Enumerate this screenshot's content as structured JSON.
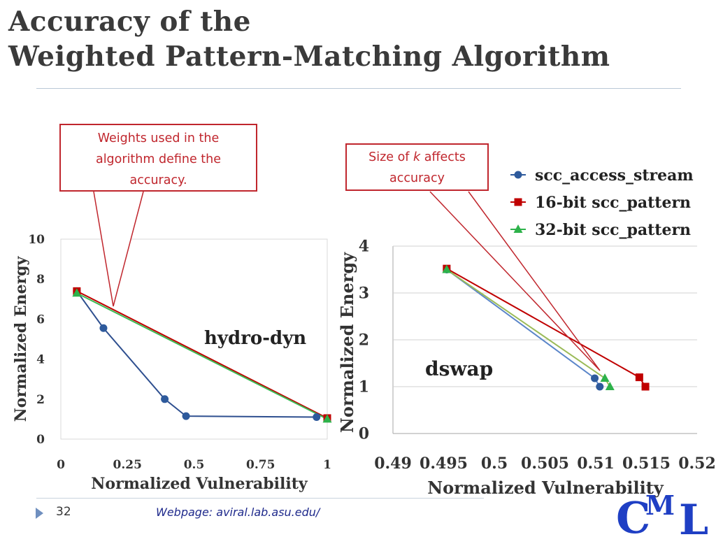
{
  "slide": {
    "title_line1": "Accuracy of the",
    "title_line2": "Weighted Pattern-Matching Algorithm",
    "callout_weights": [
      "Weights used in the",
      "algorithm define the",
      "accuracy."
    ],
    "callout_k_prefix": "Size of ",
    "callout_k_var": "k",
    "callout_k_suffix": " affects",
    "callout_k_line2": "accuracy",
    "slide_number": "32",
    "webpage": "Webpage: aviral.lab.asu.edu/",
    "logo_text": "CML"
  },
  "legend": [
    {
      "label": "scc_access_stream",
      "color": "#2e5a9c",
      "marker": "circle"
    },
    {
      "label": "16-bit  scc_pattern",
      "color": "#c00000",
      "marker": "square"
    },
    {
      "label": "32-bit  scc_pattern",
      "color": "#2db24a",
      "marker": "triangle"
    }
  ],
  "chart_data": [
    {
      "type": "line",
      "annotation": "hydro-dyn",
      "xlabel": "Normalized Vulnerability",
      "ylabel": "Normalized Energy",
      "xlim": [
        0,
        1
      ],
      "ylim": [
        0,
        10
      ],
      "xticks": [
        0,
        0.25,
        0.5,
        0.75,
        1
      ],
      "xtick_labels": [
        "0",
        "0.25",
        "0.5",
        "0.75",
        "1"
      ],
      "yticks": [
        0,
        2,
        4,
        6,
        8,
        10
      ],
      "ytick_labels": [
        "0",
        "2",
        "4",
        "6",
        "8",
        "10"
      ],
      "grid": false,
      "series": [
        {
          "name": "scc_access_stream",
          "color": "#2e5a9c",
          "line_color": "#2e4f8f",
          "marker": "circle",
          "x": [
            0.06,
            0.16,
            0.39,
            0.47,
            0.96
          ],
          "y": [
            7.4,
            5.55,
            2.0,
            1.15,
            1.1
          ]
        },
        {
          "name": "16-bit  scc_pattern",
          "color": "#c00000",
          "line_color": "#c00000",
          "marker": "square",
          "x": [
            0.06,
            1.0
          ],
          "y": [
            7.4,
            1.05
          ]
        },
        {
          "name": "32-bit  scc_pattern",
          "color": "#2db24a",
          "line_color": "#3cba55",
          "marker": "triangle",
          "x": [
            0.06,
            1.0
          ],
          "y": [
            7.3,
            1.0
          ]
        }
      ]
    },
    {
      "type": "line",
      "annotation": "dswap",
      "xlabel": "Normalized Vulnerability",
      "ylabel": "Normalized Energy",
      "xlim": [
        0.49,
        0.52
      ],
      "ylim": [
        0,
        4
      ],
      "xticks": [
        0.49,
        0.495,
        0.5,
        0.505,
        0.51,
        0.515,
        0.52
      ],
      "xtick_labels": [
        "0.49",
        "0.495",
        "0.5",
        "0.505",
        "0.51",
        "0.515",
        "0.52"
      ],
      "yticks": [
        0,
        1,
        2,
        3,
        4
      ],
      "ytick_labels": [
        "0",
        "1",
        "2",
        "3",
        "4"
      ],
      "grid": true,
      "series": [
        {
          "name": "scc_access_stream",
          "color": "#2e5a9c",
          "line_color": "#5b86c9",
          "marker": "circle",
          "x": [
            0.4953,
            0.5099,
            0.5104
          ],
          "y": [
            3.5,
            1.18,
            1.0
          ]
        },
        {
          "name": "16-bit  scc_pattern",
          "color": "#c00000",
          "line_color": "#c00000",
          "marker": "square",
          "x": [
            0.4953,
            0.5143,
            0.5149
          ],
          "y": [
            3.52,
            1.2,
            1.0
          ]
        },
        {
          "name": "32-bit  scc_pattern",
          "color": "#2db24a",
          "line_color": "#9bbb59",
          "marker": "triangle",
          "x": [
            0.4953,
            0.5109,
            0.5114
          ],
          "y": [
            3.5,
            1.18,
            1.0
          ]
        }
      ]
    }
  ]
}
